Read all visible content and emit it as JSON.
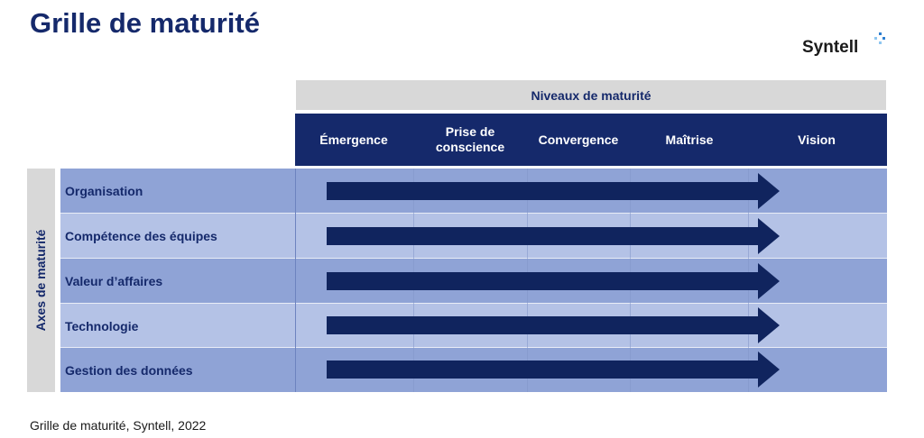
{
  "title": "Grille de maturité",
  "brand": "Syntell",
  "levels_header": "Niveaux de maturité",
  "levels": [
    "Émergence",
    "Prise de conscience",
    "Convergence",
    "Maîtrise",
    "Vision"
  ],
  "axes_label": "Axes de maturité",
  "axes": [
    "Organisation",
    "Compétence des équipes",
    "Valeur d’affaires",
    "Technologie",
    "Gestion des données"
  ],
  "caption": "Grille de maturité, Syntell, 2022",
  "colors": {
    "title": "#15296b",
    "header_bar": "#15296b",
    "arrow": "#10245e",
    "row_dark": "#8fa3d6",
    "row_light": "#b4c2e6",
    "header_gray": "#d8d8d8"
  }
}
